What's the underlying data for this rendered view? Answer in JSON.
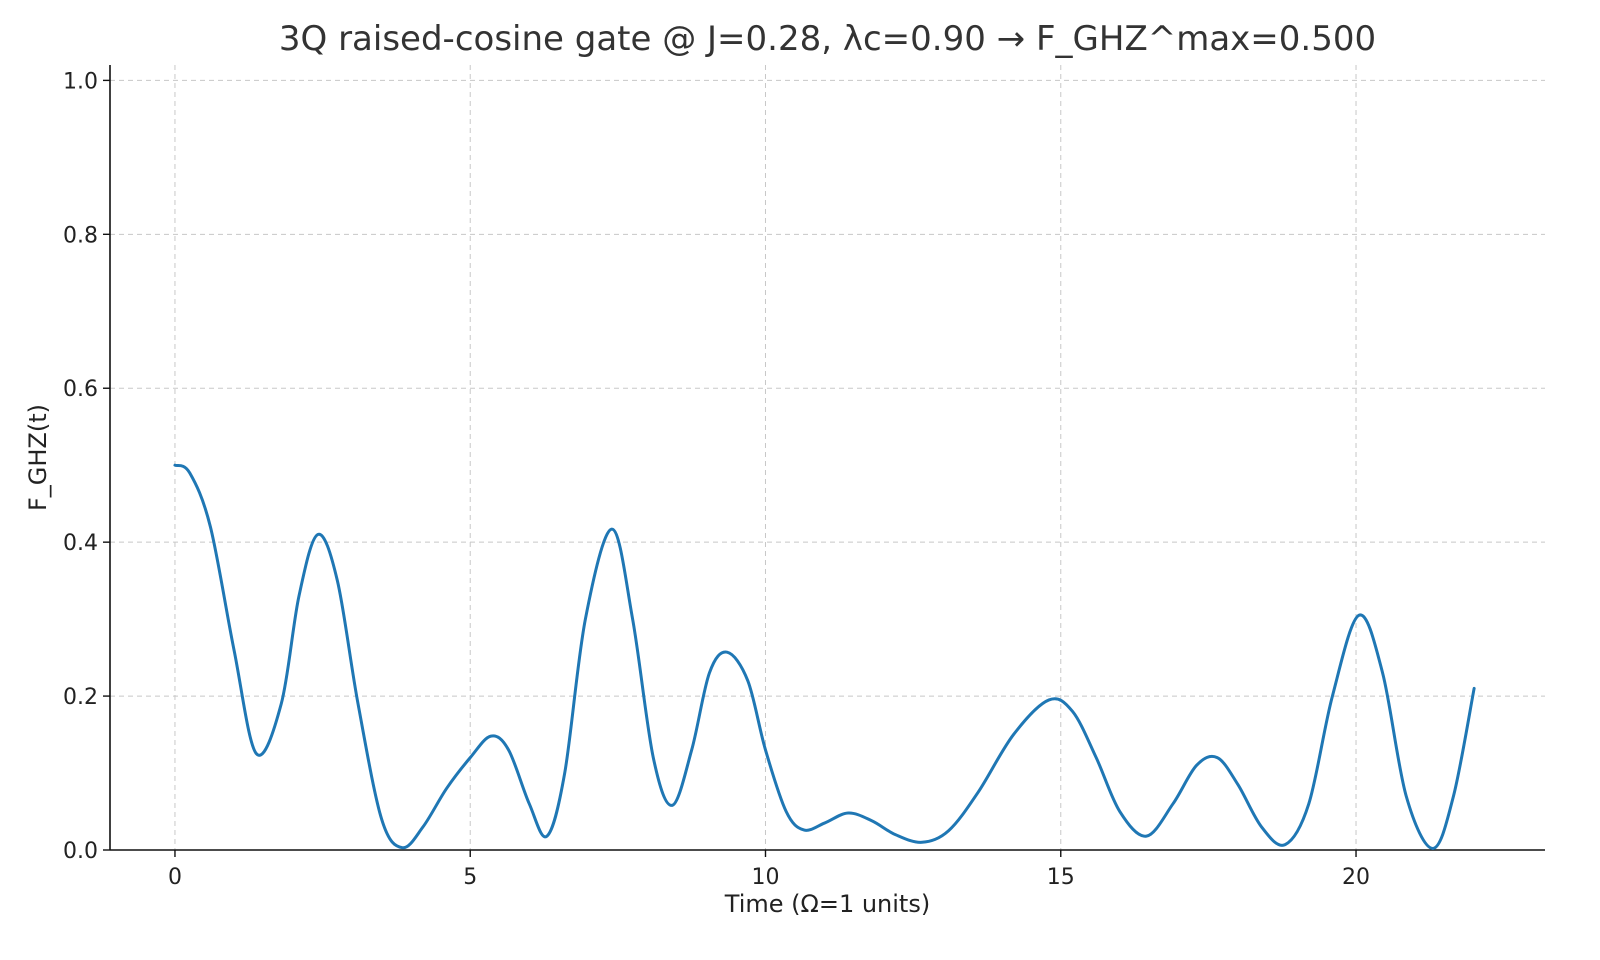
{
  "chart_data": {
    "type": "line",
    "title": "3Q raised-cosine gate @ J=0.28, λc=0.90 → F_GHZ^max=0.500",
    "xlabel": "Time (Ω=1 units)",
    "ylabel": "F_GHZ(t)",
    "xlim": [
      -1.1,
      23.2
    ],
    "ylim": [
      0.0,
      1.02
    ],
    "x_ticks": [
      0,
      5,
      10,
      15,
      20
    ],
    "y_ticks": [
      0.0,
      0.2,
      0.4,
      0.6,
      0.8,
      1.0
    ],
    "grid": true,
    "legend": "none",
    "colors": {
      "line": "#1f77b4",
      "grid": "#c8c8c8",
      "axis": "#111111",
      "title": "#333333"
    },
    "series": [
      {
        "x": [
          0.0,
          0.25,
          0.6,
          1.0,
          1.38,
          1.8,
          2.1,
          2.42,
          2.75,
          3.1,
          3.5,
          3.85,
          4.2,
          4.6,
          5.0,
          5.35,
          5.65,
          6.0,
          6.3,
          6.6,
          6.95,
          7.4,
          7.75,
          8.1,
          8.42,
          8.75,
          9.05,
          9.35,
          9.7,
          10.0,
          10.35,
          10.65,
          11.0,
          11.4,
          11.8,
          12.2,
          12.65,
          13.1,
          13.6,
          14.2,
          14.8,
          15.2,
          15.6,
          16.0,
          16.45,
          16.9,
          17.3,
          17.65,
          18.0,
          18.4,
          18.8,
          19.2,
          19.6,
          20.05,
          20.45,
          20.85,
          21.3,
          21.65,
          22.0
        ],
        "values": [
          0.5,
          0.49,
          0.42,
          0.26,
          0.125,
          0.19,
          0.33,
          0.41,
          0.35,
          0.19,
          0.04,
          0.003,
          0.03,
          0.08,
          0.12,
          0.148,
          0.13,
          0.06,
          0.018,
          0.1,
          0.3,
          0.417,
          0.3,
          0.12,
          0.058,
          0.13,
          0.23,
          0.257,
          0.22,
          0.13,
          0.05,
          0.026,
          0.035,
          0.048,
          0.038,
          0.02,
          0.01,
          0.025,
          0.075,
          0.15,
          0.195,
          0.18,
          0.12,
          0.05,
          0.018,
          0.06,
          0.11,
          0.12,
          0.085,
          0.03,
          0.007,
          0.06,
          0.2,
          0.305,
          0.23,
          0.07,
          0.002,
          0.07,
          0.21
        ]
      }
    ]
  }
}
